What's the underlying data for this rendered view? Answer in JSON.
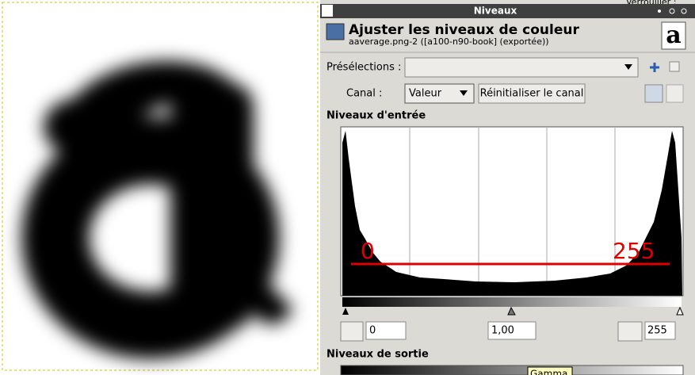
{
  "background": {
    "lock_label": "Verrouiller :"
  },
  "dialog": {
    "window_title": "Niveaux",
    "title": "Ajuster les niveaux de couleur",
    "subtitle": "aaverage.png-2 ([a100-n90-book] (exportée))",
    "thumbnail": "a",
    "presets_label": "Présélections :",
    "channel_label": "Canal :",
    "channel_value": "Valeur",
    "reset_button": "Réinitialiser le canal",
    "input_levels_label": "Niveaux d'entrée",
    "annotation_low": "0",
    "annotation_high": "255",
    "input_low": "0",
    "input_gamma": "1,00",
    "input_high": "255",
    "output_levels_label": "Niveaux de sortie",
    "tooltip": "Gamma"
  }
}
